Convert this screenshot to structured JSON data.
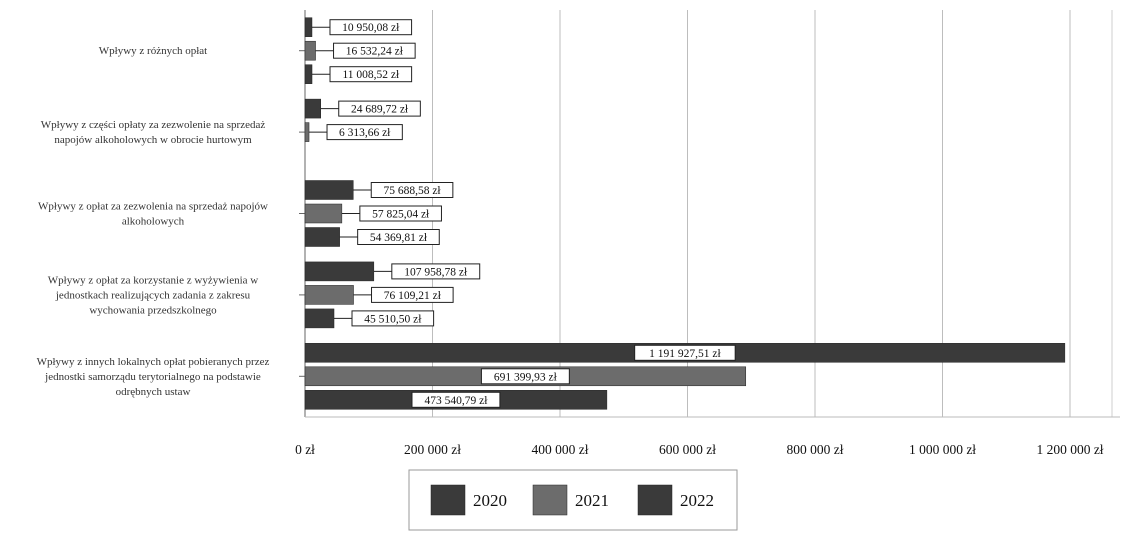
{
  "chart_data": {
    "type": "bar",
    "orientation": "horizontal",
    "categories": [
      [
        "Wpływy z różnych opłat"
      ],
      [
        "Wpływy z części opłaty za zezwolenie na sprzedaż",
        "napojów alkoholowych w obrocie hurtowym"
      ],
      [
        "Wpływy z opłat za zezwolenia na sprzedaż napojów",
        "alkoholowych"
      ],
      [
        "Wpływy z opłat za korzystanie z wyżywienia w",
        "jednostkach realizujących zadania z zakresu",
        "wychowania przedszkolnego"
      ],
      [
        "Wpływy z innych lokalnych opłat pobieranych przez",
        "jednostki samorządu terytorialnego na podstawie",
        "odrębnych ustaw"
      ]
    ],
    "series": [
      {
        "name": "2020",
        "color": "#3a3a3a",
        "values": [
          10950.08,
          24689.72,
          75688.58,
          107958.78,
          1191927.51
        ],
        "labels": [
          "10 950,08 zł",
          "24 689,72 zł",
          "75 688,58 zł",
          "107 958,78 zł",
          "1 191 927,51 zł"
        ]
      },
      {
        "name": "2021",
        "color": "#6c6c6c",
        "values": [
          16532.24,
          6313.66,
          57825.04,
          76109.21,
          691399.93
        ],
        "labels": [
          "16 532,24 zł",
          "6 313,66 zł",
          "57 825,04 zł",
          "76 109,21 zł",
          "691 399,93 zł"
        ]
      },
      {
        "name": "2022",
        "color": "#3a3a3a",
        "values": [
          11008.52,
          null,
          54369.81,
          45510.5,
          473540.79
        ],
        "labels": [
          "11 008,52 zł",
          null,
          "54 369,81 zł",
          "45 510,50 zł",
          "473 540,79 zł"
        ]
      }
    ],
    "xlim": [
      0,
      1300000
    ],
    "xticks": [
      0,
      200000,
      400000,
      600000,
      800000,
      1000000,
      1200000
    ],
    "xtick_labels": [
      "0 zł",
      "200 000 zł",
      "400 000 zł",
      "600 000 zł",
      "800 000 zł",
      "1 000 000 zł",
      "1 200 000 zł"
    ],
    "grid": "vertical",
    "legend": {
      "position": "bottom",
      "entries": [
        "2020",
        "2021",
        "2022"
      ]
    }
  }
}
